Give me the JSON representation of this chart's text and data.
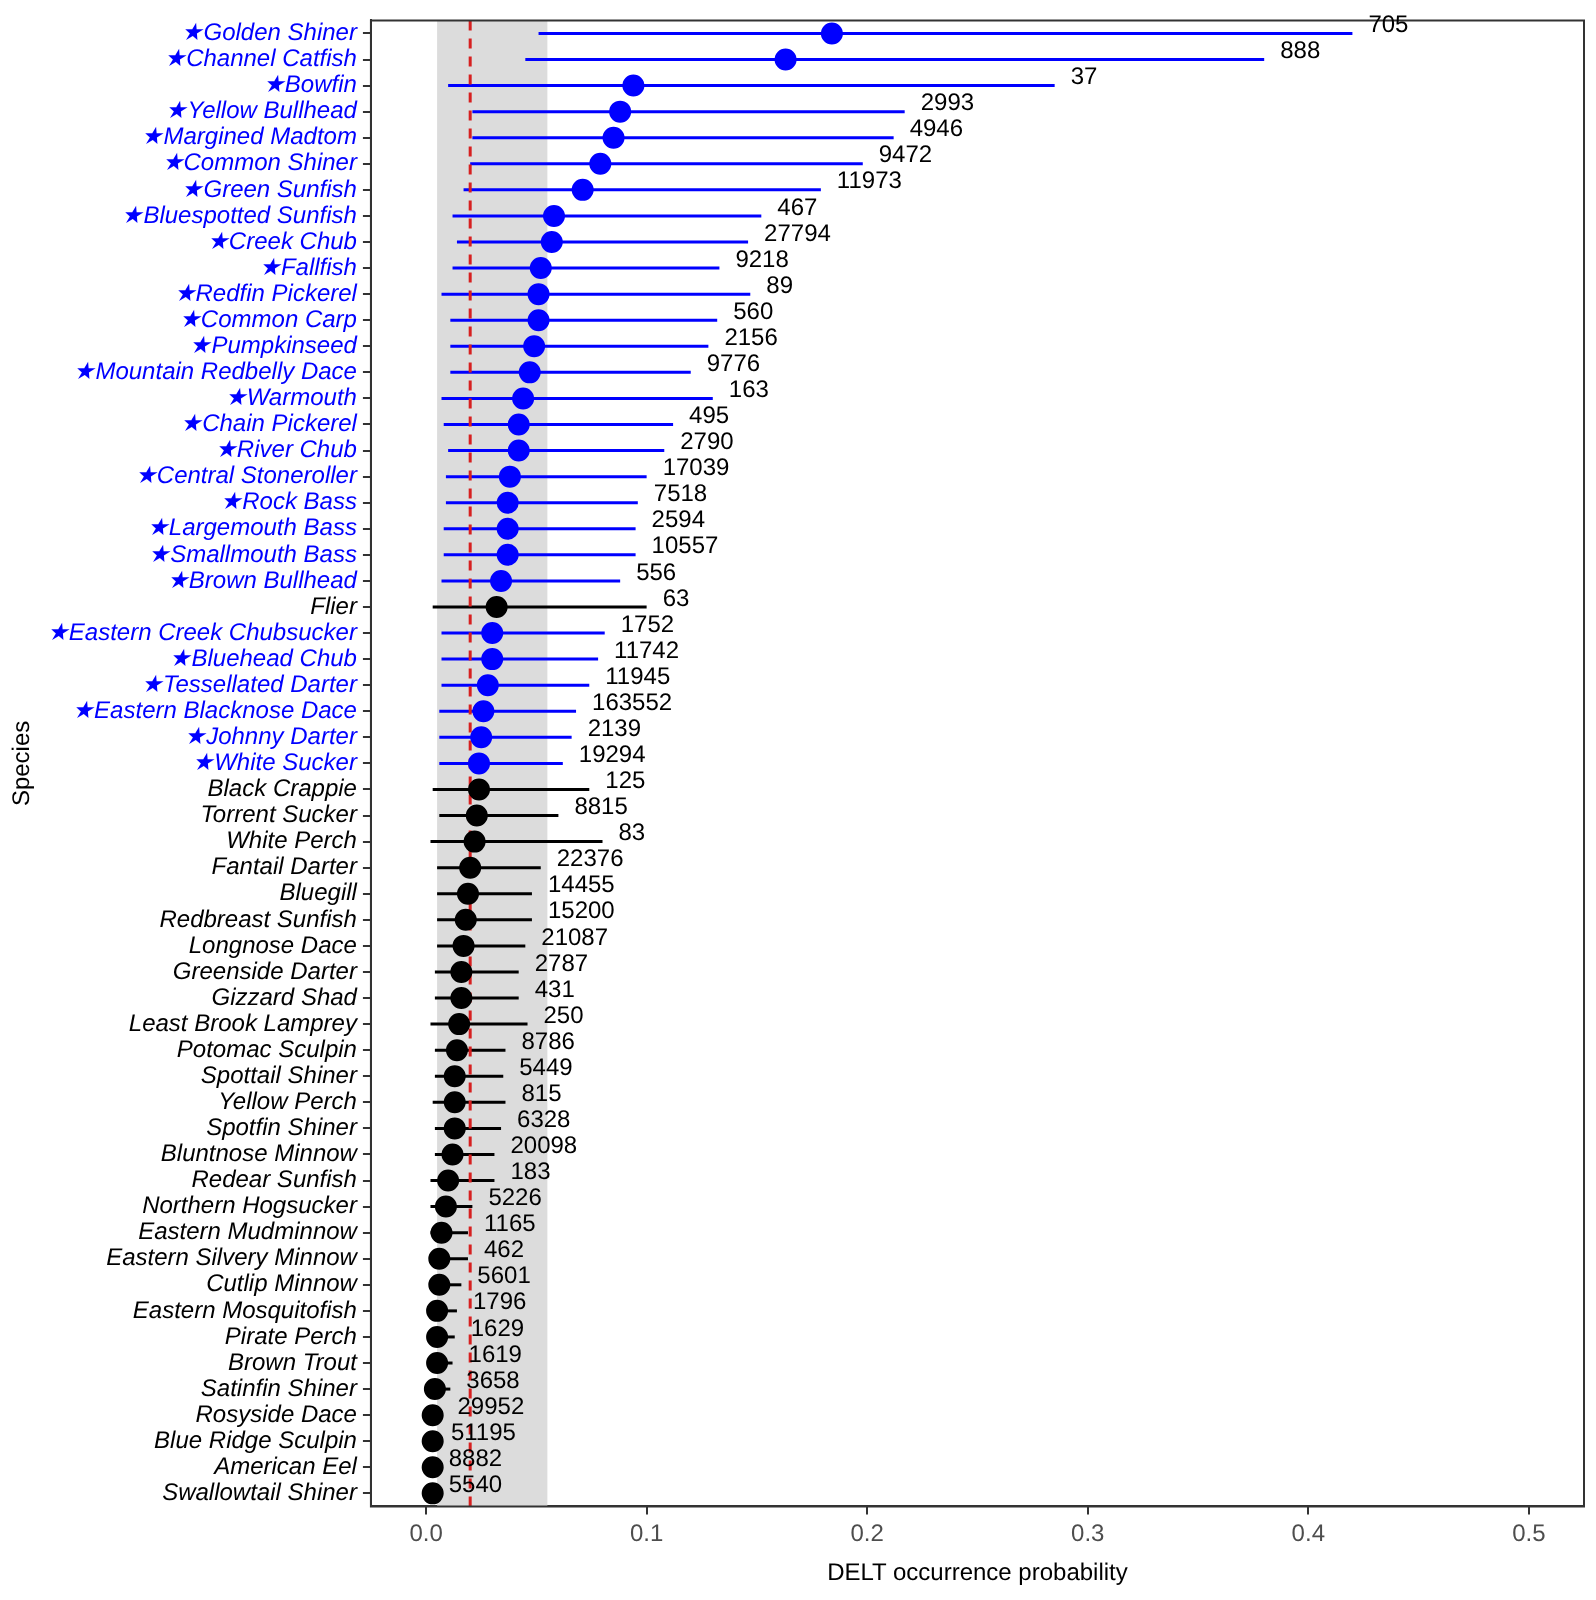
{
  "chart_data": {
    "type": "scatter",
    "orientation": "horizontal",
    "xlabel": "DELT occurrence probability",
    "ylabel": "Species",
    "categories": [
      "★Golden Shiner",
      "★Channel Catfish",
      "★Bowfin",
      "★Yellow Bullhead",
      "★Margined Madtom",
      "★Common Shiner",
      "★Green Sunfish",
      "★Bluespotted Sunfish",
      "★Creek Chub",
      "★Fallfish",
      "★Redfin Pickerel",
      "★Common Carp",
      "★Pumpkinseed",
      "★Mountain Redbelly Dace",
      "★Warmouth",
      "★Chain Pickerel",
      "★River Chub",
      "★Central Stoneroller",
      "★Rock Bass",
      "★Largemouth Bass",
      "★Smallmouth Bass",
      "★Brown Bullhead",
      "Flier",
      "★Eastern Creek Chubsucker",
      "★Bluehead Chub",
      "★Tessellated Darter",
      "★Eastern Blacknose Dace",
      "★Johnny Darter",
      "★White Sucker",
      "Black Crappie",
      "Torrent Sucker",
      "White Perch",
      "Fantail Darter",
      "Bluegill",
      "Redbreast Sunfish",
      "Longnose Dace",
      "Greenside Darter",
      "Gizzard Shad",
      "Least Brook Lamprey",
      "Potomac Sculpin",
      "Spottail Shiner",
      "Yellow Perch",
      "Spotfin Shiner",
      "Bluntnose Minnow",
      "Redear Sunfish",
      "Northern Hogsucker",
      "Eastern Mudminnow",
      "Eastern Silvery Minnow",
      "Cutlip Minnow",
      "Eastern Mosquitofish",
      "Pirate Perch",
      "Brown Trout",
      "Satinfin Shiner",
      "Rosyside Dace",
      "Blue Ridge Sculpin",
      "American Eel",
      "Swallowtail Shiner"
    ],
    "series": [
      {
        "color": "#0000ff",
        "values": [
          0.184,
          0.163,
          0.094,
          0.088,
          0.085,
          0.079,
          0.071,
          0.058,
          0.057,
          0.052,
          0.051,
          0.051,
          0.049,
          0.047,
          0.044,
          0.042,
          0.042,
          0.038,
          0.037,
          0.037,
          0.037,
          0.034,
          null,
          0.03,
          0.03,
          0.028,
          0.026,
          0.025,
          0.024,
          null,
          null,
          null,
          null,
          null,
          null,
          null,
          null,
          null,
          null,
          null,
          null,
          null,
          null,
          null,
          null,
          null,
          null,
          null,
          null,
          null,
          null,
          null,
          null,
          null,
          null,
          null,
          null
        ],
        "errors": [
          [
            0.051,
            0.42
          ],
          [
            0.045,
            0.38
          ],
          [
            0.01,
            0.285
          ],
          [
            0.021,
            0.217
          ],
          [
            0.021,
            0.212
          ],
          [
            0.02,
            0.198
          ],
          [
            0.017,
            0.179
          ],
          [
            0.012,
            0.152
          ],
          [
            0.014,
            0.146
          ],
          [
            0.012,
            0.133
          ],
          [
            0.007,
            0.147
          ],
          [
            0.011,
            0.132
          ],
          [
            0.011,
            0.128
          ],
          [
            0.011,
            0.12
          ],
          [
            0.007,
            0.13
          ],
          [
            0.008,
            0.112
          ],
          [
            0.01,
            0.108
          ],
          [
            0.009,
            0.1
          ],
          [
            0.009,
            0.096
          ],
          [
            0.008,
            0.095
          ],
          [
            0.008,
            0.095
          ],
          [
            0.007,
            0.088
          ],
          null,
          [
            0.007,
            0.081
          ],
          [
            0.007,
            0.078
          ],
          [
            0.007,
            0.074
          ],
          [
            0.006,
            0.068
          ],
          [
            0.006,
            0.066
          ],
          [
            0.006,
            0.062
          ],
          null,
          null,
          null,
          null,
          null,
          null,
          null,
          null,
          null,
          null,
          null,
          null,
          null,
          null,
          null,
          null,
          null,
          null,
          null,
          null,
          null,
          null,
          null,
          null,
          null,
          null,
          null,
          null
        ]
      },
      {
        "color": "#000000",
        "values": [
          null,
          null,
          null,
          null,
          null,
          null,
          null,
          null,
          null,
          null,
          null,
          null,
          null,
          null,
          null,
          null,
          null,
          null,
          null,
          null,
          null,
          null,
          0.032,
          null,
          null,
          null,
          null,
          null,
          null,
          0.024,
          0.023,
          0.022,
          0.02,
          0.019,
          0.018,
          0.017,
          0.016,
          0.016,
          0.015,
          0.014,
          0.013,
          0.013,
          0.013,
          0.012,
          0.01,
          0.009,
          0.007,
          0.006,
          0.006,
          0.005,
          0.005,
          0.005,
          0.004,
          0.003,
          0.003,
          0.003,
          0.003
        ],
        "errors": [
          null,
          null,
          null,
          null,
          null,
          null,
          null,
          null,
          null,
          null,
          null,
          null,
          null,
          null,
          null,
          null,
          null,
          null,
          null,
          null,
          null,
          null,
          [
            0.003,
            0.1
          ],
          null,
          null,
          null,
          null,
          null,
          null,
          [
            0.003,
            0.074
          ],
          [
            0.006,
            0.06
          ],
          [
            0.002,
            0.08
          ],
          [
            0.005,
            0.052
          ],
          [
            0.005,
            0.048
          ],
          [
            0.005,
            0.048
          ],
          [
            0.005,
            0.045
          ],
          [
            0.004,
            0.042
          ],
          [
            0.004,
            0.042
          ],
          [
            0.002,
            0.046
          ],
          [
            0.004,
            0.036
          ],
          [
            0.004,
            0.035
          ],
          [
            0.003,
            0.036
          ],
          [
            0.004,
            0.034
          ],
          [
            0.004,
            0.031
          ],
          [
            0.002,
            0.031
          ],
          [
            0.002,
            0.021
          ],
          [
            0.002,
            0.019
          ],
          [
            0.002,
            0.019
          ],
          [
            0.002,
            0.016
          ],
          [
            0.002,
            0.014
          ],
          [
            0.002,
            0.013
          ],
          [
            0.002,
            0.012
          ],
          [
            0.001,
            0.011
          ],
          [
            0.001,
            0.007
          ],
          [
            0.002,
            0.004
          ],
          null,
          null
        ]
      }
    ],
    "xlim": [
      -0.025,
      0.525
    ],
    "xticks": [
      {
        "value": 0,
        "label": "0.0"
      },
      {
        "value": 0.1,
        "label": "0.1"
      },
      {
        "value": 0.2,
        "label": "0.2"
      },
      {
        "value": 0.3,
        "label": "0.3"
      },
      {
        "value": 0.4,
        "label": "0.4"
      },
      {
        "value": 0.5,
        "label": "0.5"
      }
    ],
    "marker": "circle",
    "bands": [
      {
        "axis": "x",
        "from": 0.005,
        "to": 0.055,
        "color": "#dcdcdc"
      }
    ],
    "ref_lines": [
      {
        "axis": "x",
        "value": 0.02,
        "color": "#d62020",
        "line_style": "dashed"
      }
    ],
    "annotations": [
      {
        "text": "705",
        "x": 0.42,
        "y": "★Golden Shiner"
      },
      {
        "text": "888",
        "x": 0.38,
        "y": "★Channel Catfish"
      },
      {
        "text": "37",
        "x": 0.285,
        "y": "★Bowfin"
      },
      {
        "text": "2993",
        "x": 0.217,
        "y": "★Yellow Bullhead"
      },
      {
        "text": "4946",
        "x": 0.212,
        "y": "★Margined Madtom"
      },
      {
        "text": "9472",
        "x": 0.198,
        "y": "★Common Shiner"
      },
      {
        "text": "11973",
        "x": 0.179,
        "y": "★Green Sunfish"
      },
      {
        "text": "467",
        "x": 0.152,
        "y": "★Bluespotted Sunfish"
      },
      {
        "text": "27794",
        "x": 0.146,
        "y": "★Creek Chub"
      },
      {
        "text": "9218",
        "x": 0.133,
        "y": "★Fallfish"
      },
      {
        "text": "89",
        "x": 0.147,
        "y": "★Redfin Pickerel"
      },
      {
        "text": "560",
        "x": 0.132,
        "y": "★Common Carp"
      },
      {
        "text": "2156",
        "x": 0.128,
        "y": "★Pumpkinseed"
      },
      {
        "text": "9776",
        "x": 0.12,
        "y": "★Mountain Redbelly Dace"
      },
      {
        "text": "163",
        "x": 0.13,
        "y": "★Warmouth"
      },
      {
        "text": "495",
        "x": 0.112,
        "y": "★Chain Pickerel"
      },
      {
        "text": "2790",
        "x": 0.108,
        "y": "★River Chub"
      },
      {
        "text": "17039",
        "x": 0.1,
        "y": "★Central Stoneroller"
      },
      {
        "text": "7518",
        "x": 0.096,
        "y": "★Rock Bass"
      },
      {
        "text": "2594",
        "x": 0.095,
        "y": "★Largemouth Bass"
      },
      {
        "text": "10557",
        "x": 0.095,
        "y": "★Smallmouth Bass"
      },
      {
        "text": "556",
        "x": 0.088,
        "y": "★Brown Bullhead"
      },
      {
        "text": "63",
        "x": 0.1,
        "y": "Flier"
      },
      {
        "text": "1752",
        "x": 0.081,
        "y": "★Eastern Creek Chubsucker"
      },
      {
        "text": "11742",
        "x": 0.078,
        "y": "★Bluehead Chub"
      },
      {
        "text": "11945",
        "x": 0.074,
        "y": "★Tessellated Darter"
      },
      {
        "text": "163552",
        "x": 0.068,
        "y": "★Eastern Blacknose Dace"
      },
      {
        "text": "2139",
        "x": 0.066,
        "y": "★Johnny Darter"
      },
      {
        "text": "19294",
        "x": 0.062,
        "y": "★White Sucker"
      },
      {
        "text": "125",
        "x": 0.074,
        "y": "Black Crappie"
      },
      {
        "text": "8815",
        "x": 0.06,
        "y": "Torrent Sucker"
      },
      {
        "text": "83",
        "x": 0.08,
        "y": "White Perch"
      },
      {
        "text": "22376",
        "x": 0.052,
        "y": "Fantail Darter"
      },
      {
        "text": "14455",
        "x": 0.048,
        "y": "Bluegill"
      },
      {
        "text": "15200",
        "x": 0.048,
        "y": "Redbreast Sunfish"
      },
      {
        "text": "21087",
        "x": 0.045,
        "y": "Longnose Dace"
      },
      {
        "text": "2787",
        "x": 0.042,
        "y": "Greenside Darter"
      },
      {
        "text": "431",
        "x": 0.042,
        "y": "Gizzard Shad"
      },
      {
        "text": "250",
        "x": 0.046,
        "y": "Least Brook Lamprey"
      },
      {
        "text": "8786",
        "x": 0.036,
        "y": "Potomac Sculpin"
      },
      {
        "text": "5449",
        "x": 0.035,
        "y": "Spottail Shiner"
      },
      {
        "text": "815",
        "x": 0.036,
        "y": "Yellow Perch"
      },
      {
        "text": "6328",
        "x": 0.034,
        "y": "Spotfin Shiner"
      },
      {
        "text": "20098",
        "x": 0.031,
        "y": "Bluntnose Minnow"
      },
      {
        "text": "183",
        "x": 0.031,
        "y": "Redear Sunfish"
      },
      {
        "text": "5226",
        "x": 0.021,
        "y": "Northern Hogsucker"
      },
      {
        "text": "1165",
        "x": 0.019,
        "y": "Eastern Mudminnow"
      },
      {
        "text": "462",
        "x": 0.019,
        "y": "Eastern Silvery Minnow"
      },
      {
        "text": "5601",
        "x": 0.016,
        "y": "Cutlip Minnow"
      },
      {
        "text": "1796",
        "x": 0.014,
        "y": "Eastern Mosquitofish"
      },
      {
        "text": "1629",
        "x": 0.013,
        "y": "Pirate Perch"
      },
      {
        "text": "1619",
        "x": 0.012,
        "y": "Brown Trout"
      },
      {
        "text": "3658",
        "x": 0.011,
        "y": "Satinfin Shiner"
      },
      {
        "text": "29952",
        "x": 0.007,
        "y": "Rosyside Dace"
      },
      {
        "text": "51195",
        "x": 0.004,
        "y": "Blue Ridge Sculpin"
      },
      {
        "text": "8882",
        "x": 0.003,
        "y": "American Eel"
      },
      {
        "text": "5540",
        "x": 0.003,
        "y": "Swallowtail Shiner"
      }
    ]
  }
}
